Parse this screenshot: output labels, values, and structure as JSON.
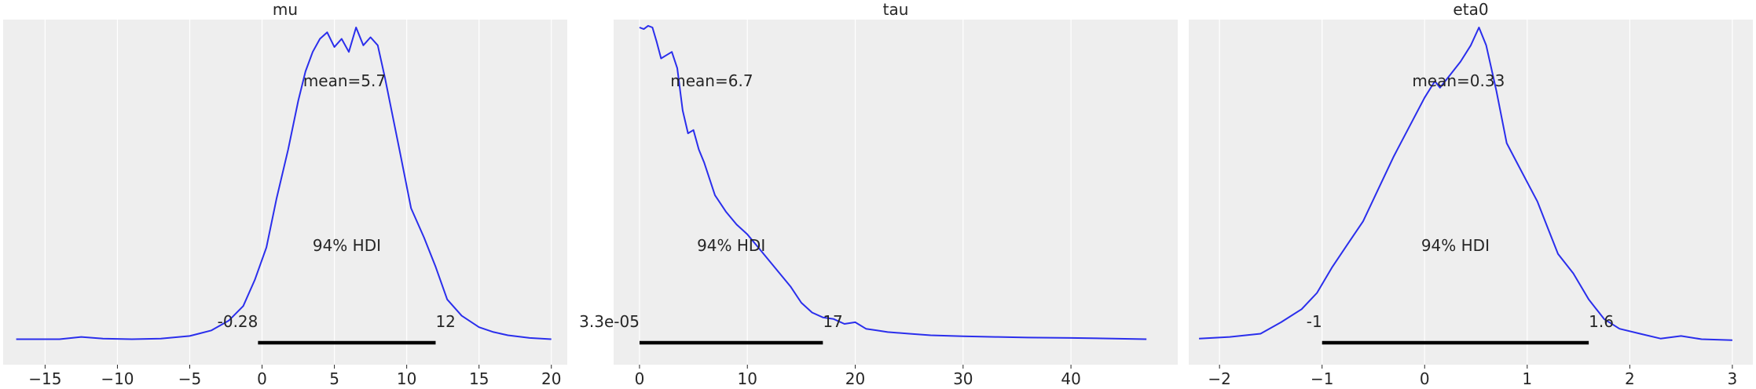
{
  "chart_data": [
    {
      "type": "line",
      "title": "mu",
      "xlim": [
        -17.9,
        21.1
      ],
      "ylim": [
        0,
        1
      ],
      "grid": true,
      "xticks": [
        -15,
        -10,
        -5,
        0,
        5,
        10,
        15,
        20
      ],
      "xtick_labels": [
        "−15",
        "−10",
        "−5",
        "0",
        "5",
        "10",
        "15",
        "20"
      ],
      "series": [
        {
          "values_xy": [
            [
              -17,
              0.018
            ],
            [
              -14,
              0.018
            ],
            [
              -12.5,
              0.025
            ],
            [
              -11,
              0.02
            ],
            [
              -9,
              0.018
            ],
            [
              -7,
              0.02
            ],
            [
              -5,
              0.028
            ],
            [
              -3.5,
              0.045
            ],
            [
              -2.3,
              0.075
            ],
            [
              -1.3,
              0.12
            ],
            [
              -0.5,
              0.2
            ],
            [
              0.3,
              0.3
            ],
            [
              1,
              0.45
            ],
            [
              1.8,
              0.6
            ],
            [
              2.5,
              0.75
            ],
            [
              3,
              0.84
            ],
            [
              3.5,
              0.9
            ],
            [
              4,
              0.94
            ],
            [
              4.5,
              0.96
            ],
            [
              5,
              0.915
            ],
            [
              5.5,
              0.94
            ],
            [
              6,
              0.9
            ],
            [
              6.5,
              0.975
            ],
            [
              7,
              0.92
            ],
            [
              7.5,
              0.945
            ],
            [
              8,
              0.92
            ],
            [
              8.5,
              0.82
            ],
            [
              9.5,
              0.6
            ],
            [
              10.3,
              0.42
            ],
            [
              11.2,
              0.33
            ],
            [
              12,
              0.24
            ],
            [
              12.8,
              0.14
            ],
            [
              13.8,
              0.09
            ],
            [
              15,
              0.055
            ],
            [
              16,
              0.04
            ],
            [
              17,
              0.03
            ],
            [
              18.5,
              0.022
            ],
            [
              20,
              0.018
            ]
          ]
        }
      ],
      "mean_label": "mean=5.7",
      "hdi_label": "94% HDI",
      "hdi_low": -0.28,
      "hdi_high": 12,
      "hdi_low_label": "-0.28",
      "hdi_high_label": "12"
    },
    {
      "type": "line",
      "title": "tau",
      "xlim": [
        -2.4,
        49.9
      ],
      "ylim": [
        0,
        1
      ],
      "grid": true,
      "xticks": [
        0,
        10,
        20,
        30,
        40
      ],
      "xtick_labels": [
        "0",
        "10",
        "20",
        "30",
        "40"
      ],
      "series": [
        {
          "values_xy": [
            [
              0,
              0.975
            ],
            [
              0.4,
              0.97
            ],
            [
              0.8,
              0.98
            ],
            [
              1.2,
              0.975
            ],
            [
              1.6,
              0.93
            ],
            [
              2,
              0.88
            ],
            [
              2.5,
              0.89
            ],
            [
              3,
              0.9
            ],
            [
              3.5,
              0.85
            ],
            [
              4,
              0.72
            ],
            [
              4.5,
              0.65
            ],
            [
              5,
              0.66
            ],
            [
              5.5,
              0.6
            ],
            [
              6,
              0.56
            ],
            [
              7,
              0.46
            ],
            [
              8,
              0.41
            ],
            [
              9,
              0.37
            ],
            [
              10,
              0.34
            ],
            [
              11,
              0.3
            ],
            [
              12,
              0.26
            ],
            [
              13,
              0.22
            ],
            [
              14,
              0.18
            ],
            [
              15,
              0.13
            ],
            [
              16,
              0.1
            ],
            [
              17,
              0.085
            ],
            [
              18,
              0.08
            ],
            [
              19,
              0.065
            ],
            [
              20,
              0.07
            ],
            [
              21,
              0.05
            ],
            [
              22,
              0.045
            ],
            [
              23,
              0.04
            ],
            [
              25,
              0.035
            ],
            [
              27,
              0.03
            ],
            [
              30,
              0.027
            ],
            [
              33,
              0.025
            ],
            [
              36,
              0.023
            ],
            [
              40,
              0.022
            ],
            [
              44,
              0.02
            ],
            [
              47,
              0.018
            ]
          ]
        }
      ],
      "mean_label": "mean=6.7",
      "hdi_label": "94% HDI",
      "hdi_low": 3.3e-05,
      "hdi_high": 17,
      "hdi_low_label": "3.3e-05",
      "hdi_high_label": "17"
    },
    {
      "type": "line",
      "title": "eta0",
      "xlim": [
        -2.3,
        3.2
      ],
      "ylim": [
        0,
        1
      ],
      "grid": true,
      "xticks": [
        -2,
        -1,
        0,
        1,
        2,
        3
      ],
      "xtick_labels": [
        "−2",
        "−1",
        "0",
        "1",
        "2",
        "3"
      ],
      "series": [
        {
          "values_xy": [
            [
              -2.2,
              0.02
            ],
            [
              -1.9,
              0.025
            ],
            [
              -1.6,
              0.035
            ],
            [
              -1.4,
              0.07
            ],
            [
              -1.2,
              0.11
            ],
            [
              -1.05,
              0.16
            ],
            [
              -0.9,
              0.24
            ],
            [
              -0.75,
              0.31
            ],
            [
              -0.6,
              0.38
            ],
            [
              -0.45,
              0.48
            ],
            [
              -0.3,
              0.58
            ],
            [
              -0.15,
              0.67
            ],
            [
              0,
              0.76
            ],
            [
              0.1,
              0.81
            ],
            [
              0.15,
              0.79
            ],
            [
              0.25,
              0.83
            ],
            [
              0.35,
              0.87
            ],
            [
              0.45,
              0.92
            ],
            [
              0.53,
              0.975
            ],
            [
              0.6,
              0.92
            ],
            [
              0.7,
              0.78
            ],
            [
              0.8,
              0.62
            ],
            [
              0.9,
              0.56
            ],
            [
              1,
              0.5
            ],
            [
              1.1,
              0.44
            ],
            [
              1.2,
              0.36
            ],
            [
              1.3,
              0.28
            ],
            [
              1.45,
              0.22
            ],
            [
              1.6,
              0.14
            ],
            [
              1.75,
              0.08
            ],
            [
              1.9,
              0.05
            ],
            [
              2.1,
              0.035
            ],
            [
              2.3,
              0.02
            ],
            [
              2.5,
              0.028
            ],
            [
              2.7,
              0.018
            ],
            [
              3,
              0.015
            ]
          ]
        }
      ],
      "mean_label": "mean=0.33",
      "hdi_label": "94% HDI",
      "hdi_low": -1,
      "hdi_high": 1.6,
      "hdi_low_label": "-1",
      "hdi_high_label": "1.6"
    }
  ],
  "colors": {
    "background": "#ffffff",
    "panel": "#eeeeee",
    "grid": "#ffffff",
    "line": "#2a2eec",
    "hdi": "#000000",
    "text": "#262626"
  }
}
